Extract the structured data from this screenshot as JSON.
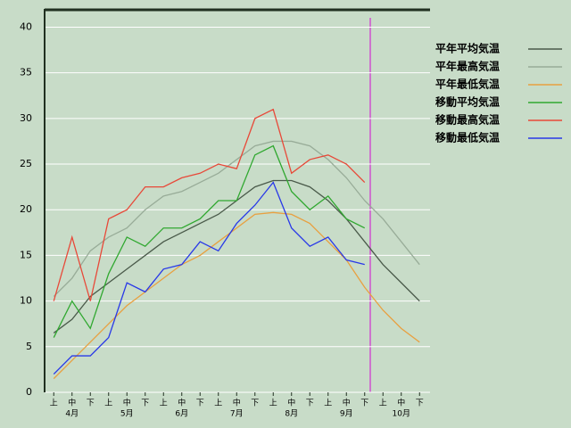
{
  "chart_data": {
    "type": "line",
    "categories": [
      "上",
      "中",
      "下",
      "上",
      "中",
      "下",
      "上",
      "中",
      "下",
      "上",
      "中",
      "下",
      "上",
      "中",
      "下",
      "上",
      "中",
      "下",
      "上",
      "中",
      "下"
    ],
    "months": [
      "4月",
      "5月",
      "6月",
      "7月",
      "8月",
      "9月",
      "10月"
    ],
    "ylim": [
      0,
      42
    ],
    "yticks": [
      0,
      5,
      10,
      15,
      20,
      25,
      30,
      35,
      40
    ],
    "grid": true,
    "series": [
      {
        "name": "平年平均気温",
        "color": "#4a5a4a",
        "values": [
          6.5,
          8,
          10.5,
          12,
          13.5,
          15,
          16.5,
          17.5,
          18.5,
          19.5,
          21,
          22.5,
          23.2,
          23.2,
          22.5,
          21,
          19,
          16.5,
          14,
          12,
          10
        ]
      },
      {
        "name": "平年最高気温",
        "color": "#98ac98",
        "values": [
          10.5,
          12.5,
          15.5,
          17,
          18,
          20,
          21.5,
          22,
          23,
          24,
          25.5,
          27,
          27.5,
          27.5,
          27,
          25.5,
          23.5,
          21,
          19,
          16.5,
          14
        ]
      },
      {
        "name": "平年最低気温",
        "color": "#e8a040",
        "values": [
          1.5,
          3.5,
          5.5,
          7.5,
          9.5,
          11,
          12.5,
          14,
          15,
          16.5,
          18,
          19.5,
          19.7,
          19.5,
          18.5,
          16.5,
          14.5,
          11.5,
          9,
          7,
          5.5
        ]
      },
      {
        "name": "移動平均気温",
        "color": "#30a830",
        "values": [
          6,
          10,
          7,
          13,
          17,
          16,
          18,
          18,
          19,
          21,
          21,
          26,
          27,
          22,
          20,
          21.5,
          19,
          18,
          null,
          null,
          null
        ]
      },
      {
        "name": "移動最高気温",
        "color": "#e84838",
        "values": [
          10,
          17,
          10,
          19,
          20,
          22.5,
          22.5,
          23.5,
          24,
          25,
          24.5,
          30,
          31,
          24,
          25.5,
          26,
          25,
          23,
          null,
          null,
          null
        ]
      },
      {
        "name": "移動最低気温",
        "color": "#2838e8",
        "values": [
          2,
          4,
          4,
          6,
          12,
          11,
          13.5,
          14,
          16.5,
          15.5,
          18.5,
          20.5,
          23,
          18,
          16,
          17,
          14.5,
          14,
          null,
          null,
          null
        ]
      }
    ]
  }
}
